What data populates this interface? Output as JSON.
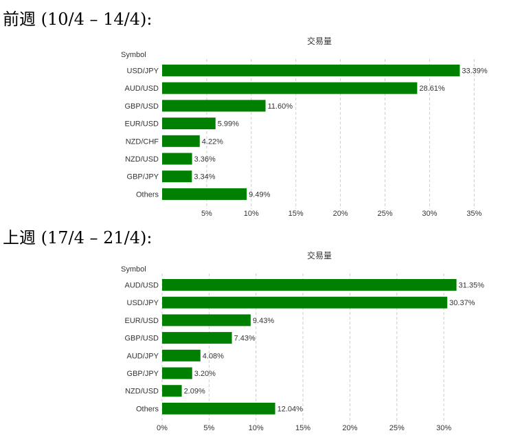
{
  "sections": [
    {
      "heading": "前週 (10/4 – 14/4):"
    },
    {
      "heading": "上週 (17/4 – 21/4):"
    }
  ],
  "chart_data": [
    {
      "type": "bar",
      "orientation": "horizontal",
      "title": "交易量",
      "ylabel": "Symbol",
      "categories": [
        "USD/JPY",
        "AUD/USD",
        "GBP/USD",
        "EUR/USD",
        "NZD/CHF",
        "NZD/USD",
        "GBP/JPY",
        "Others"
      ],
      "values": [
        33.39,
        28.61,
        11.6,
        5.99,
        4.22,
        3.36,
        3.34,
        9.49
      ],
      "value_labels": [
        "33.39%",
        "28.61%",
        "11.60%",
        "5.99%",
        "4.22%",
        "3.36%",
        "3.34%",
        "9.49%"
      ],
      "xlim": [
        0,
        35
      ],
      "xticks": [
        5,
        10,
        15,
        20,
        25,
        30,
        35
      ],
      "xtick_labels": [
        "5%",
        "10%",
        "15%",
        "20%",
        "25%",
        "30%",
        "35%"
      ],
      "grid": "vertical-dashed",
      "color": "#008000"
    },
    {
      "type": "bar",
      "orientation": "horizontal",
      "title": "交易量",
      "ylabel": "Symbol",
      "categories": [
        "AUD/USD",
        "USD/JPY",
        "EUR/USD",
        "GBP/USD",
        "AUD/JPY",
        "GBP/JPY",
        "NZD/USD",
        "Others"
      ],
      "values": [
        31.35,
        30.37,
        9.43,
        7.43,
        4.08,
        3.2,
        2.09,
        12.04
      ],
      "value_labels": [
        "31.35%",
        "30.37%",
        "9.43%",
        "7.43%",
        "4.08%",
        "3.20%",
        "2.09%",
        "12.04%"
      ],
      "xlim": [
        0,
        32
      ],
      "xticks": [
        0,
        5,
        10,
        15,
        20,
        25,
        30
      ],
      "xtick_labels": [
        "0%",
        "5%",
        "10%",
        "15%",
        "20%",
        "25%",
        "30%"
      ],
      "grid": "vertical-dashed",
      "color": "#008000"
    }
  ]
}
